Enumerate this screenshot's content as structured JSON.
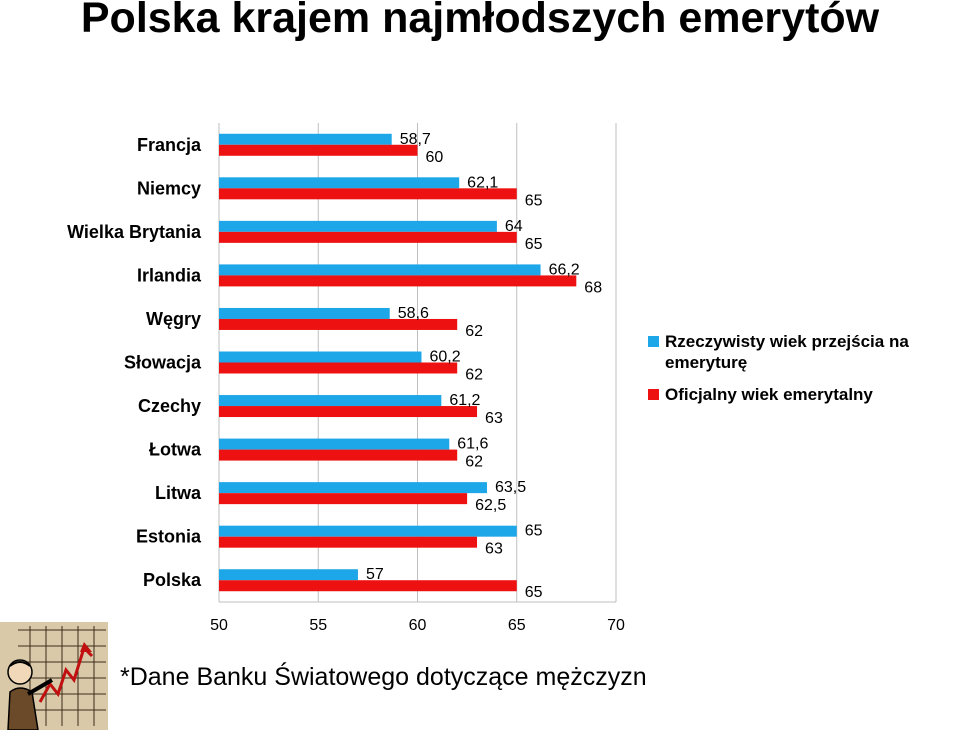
{
  "title": "Polska krajem najmłodszych emerytów",
  "footnote": "*Dane Banku Światowego dotyczące mężczyzn",
  "colors": {
    "actual": "#1ea7e8",
    "official": "#ee1111"
  },
  "chart_data": {
    "type": "bar",
    "orientation": "horizontal",
    "title": "Polska krajem najmłodszych emerytów",
    "categories": [
      "Francja",
      "Niemcy",
      "Wielka Brytania",
      "Irlandia",
      "Węgry",
      "Słowacja",
      "Czechy",
      "Łotwa",
      "Litwa",
      "Estonia",
      "Polska"
    ],
    "series": [
      {
        "name": "Rzeczywisty wiek przejścia na emeryturę",
        "color": "#1ea7e8",
        "values": [
          58.7,
          62.1,
          64,
          66.2,
          58.6,
          60.2,
          61.2,
          61.6,
          63.5,
          65,
          57
        ],
        "labels": [
          "58,7",
          "62,1",
          "64",
          "66,2",
          "58,6",
          "60,2",
          "61,2",
          "61,6",
          "63,5",
          "65",
          "57"
        ]
      },
      {
        "name": "Oficjalny  wiek emerytalny",
        "color": "#ee1111",
        "values": [
          60,
          65,
          65,
          68,
          62,
          62,
          63,
          62,
          62.5,
          63,
          65
        ],
        "labels": [
          "60",
          "65",
          "65",
          "68",
          "62",
          "62",
          "63",
          "62",
          "62,5",
          "63",
          "65"
        ]
      }
    ],
    "xlim": [
      50,
      70
    ],
    "xticks": [
      "50",
      "55",
      "60",
      "65",
      "70"
    ],
    "grid": true,
    "legend_position": "right"
  }
}
